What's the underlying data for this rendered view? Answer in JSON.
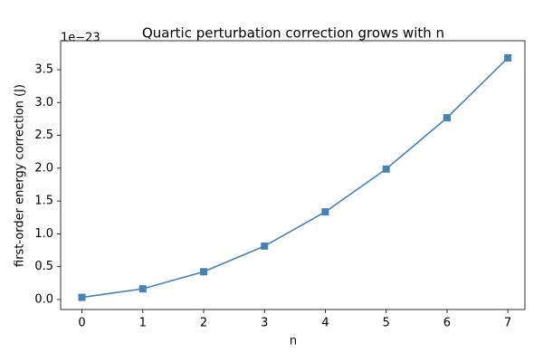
{
  "chart_data": {
    "type": "line",
    "title": "Quartic perturbation correction grows with n",
    "x_label": "n",
    "y_label": "first-order energy correction (J)",
    "y_offset_label": "1e−23",
    "x": [
      0,
      1,
      2,
      3,
      4,
      5,
      6,
      7
    ],
    "series": [
      {
        "name": "first-order energy correction",
        "color": "#4682b4",
        "values": [
          0.033,
          0.163,
          0.423,
          0.814,
          1.335,
          1.987,
          2.768,
          3.68
        ]
      }
    ],
    "xlim": [
      -0.35,
      7.28
    ],
    "ylim": [
      -0.152,
      3.941
    ],
    "xticks": [
      0,
      1,
      2,
      3,
      4,
      5,
      6,
      7
    ],
    "yticks": [
      {
        "value": 0,
        "label": "0.0"
      },
      {
        "value": 0.5,
        "label": "0.5"
      },
      {
        "value": 1,
        "label": "1.0"
      },
      {
        "value": 1.5,
        "label": "1.5"
      },
      {
        "value": 2,
        "label": "2.0"
      },
      {
        "value": 2.5,
        "label": "2.5"
      },
      {
        "value": 3,
        "label": "3.0"
      },
      {
        "value": 3.5,
        "label": "3.5"
      }
    ],
    "grid": false,
    "marker": "square"
  }
}
